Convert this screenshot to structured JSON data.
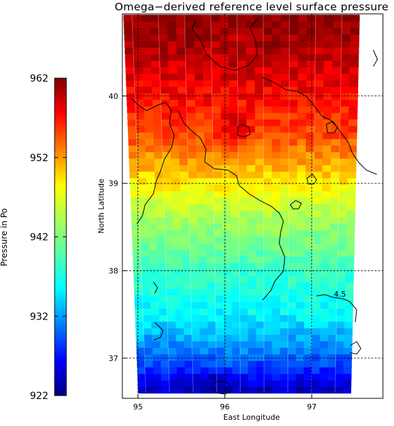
{
  "chart_data": {
    "type": "heatmap",
    "title": "Omega−derived reference level surface pressure",
    "xlabel": "East Longitude",
    "ylabel": "North Latitude",
    "colorbar_label": "Pressure in Po",
    "colorbar_range": [
      922,
      962
    ],
    "colorbar_ticks": [
      "922",
      "932",
      "942",
      "952",
      "962"
    ],
    "x_ticks": [
      {
        "value": 95,
        "label": "95"
      },
      {
        "value": 96,
        "label": "96"
      },
      {
        "value": 97,
        "label": "97"
      }
    ],
    "y_ticks": [
      {
        "value": 37,
        "label": "37"
      },
      {
        "value": 38,
        "label": "38"
      },
      {
        "value": 39,
        "label": "39"
      },
      {
        "value": 40,
        "label": "40"
      }
    ],
    "xlim": [
      94.82,
      97.82
    ],
    "ylim": [
      36.54,
      40.94
    ],
    "swath": {
      "lat_range": [
        36.6,
        40.93
      ],
      "lon_left_at_bottom": 95.0,
      "lon_left_at_top": 94.83,
      "lon_right_at_bottom": 97.45,
      "lon_right_at_top": 97.55
    },
    "gradient_profile": [
      {
        "lat": 36.6,
        "value": 923.5
      },
      {
        "lat": 37.0,
        "value": 930.0
      },
      {
        "lat": 37.5,
        "value": 935.5
      },
      {
        "lat": 38.0,
        "value": 938.5
      },
      {
        "lat": 38.5,
        "value": 943.0
      },
      {
        "lat": 39.0,
        "value": 949.0
      },
      {
        "lat": 39.5,
        "value": 954.5
      },
      {
        "lat": 40.0,
        "value": 957.5
      },
      {
        "lat": 40.5,
        "value": 960.0
      },
      {
        "lat": 40.93,
        "value": 962.0
      }
    ],
    "contour_label": "4.5",
    "grid": true,
    "grid_style": "dashed",
    "colorscale": "rainbow"
  }
}
